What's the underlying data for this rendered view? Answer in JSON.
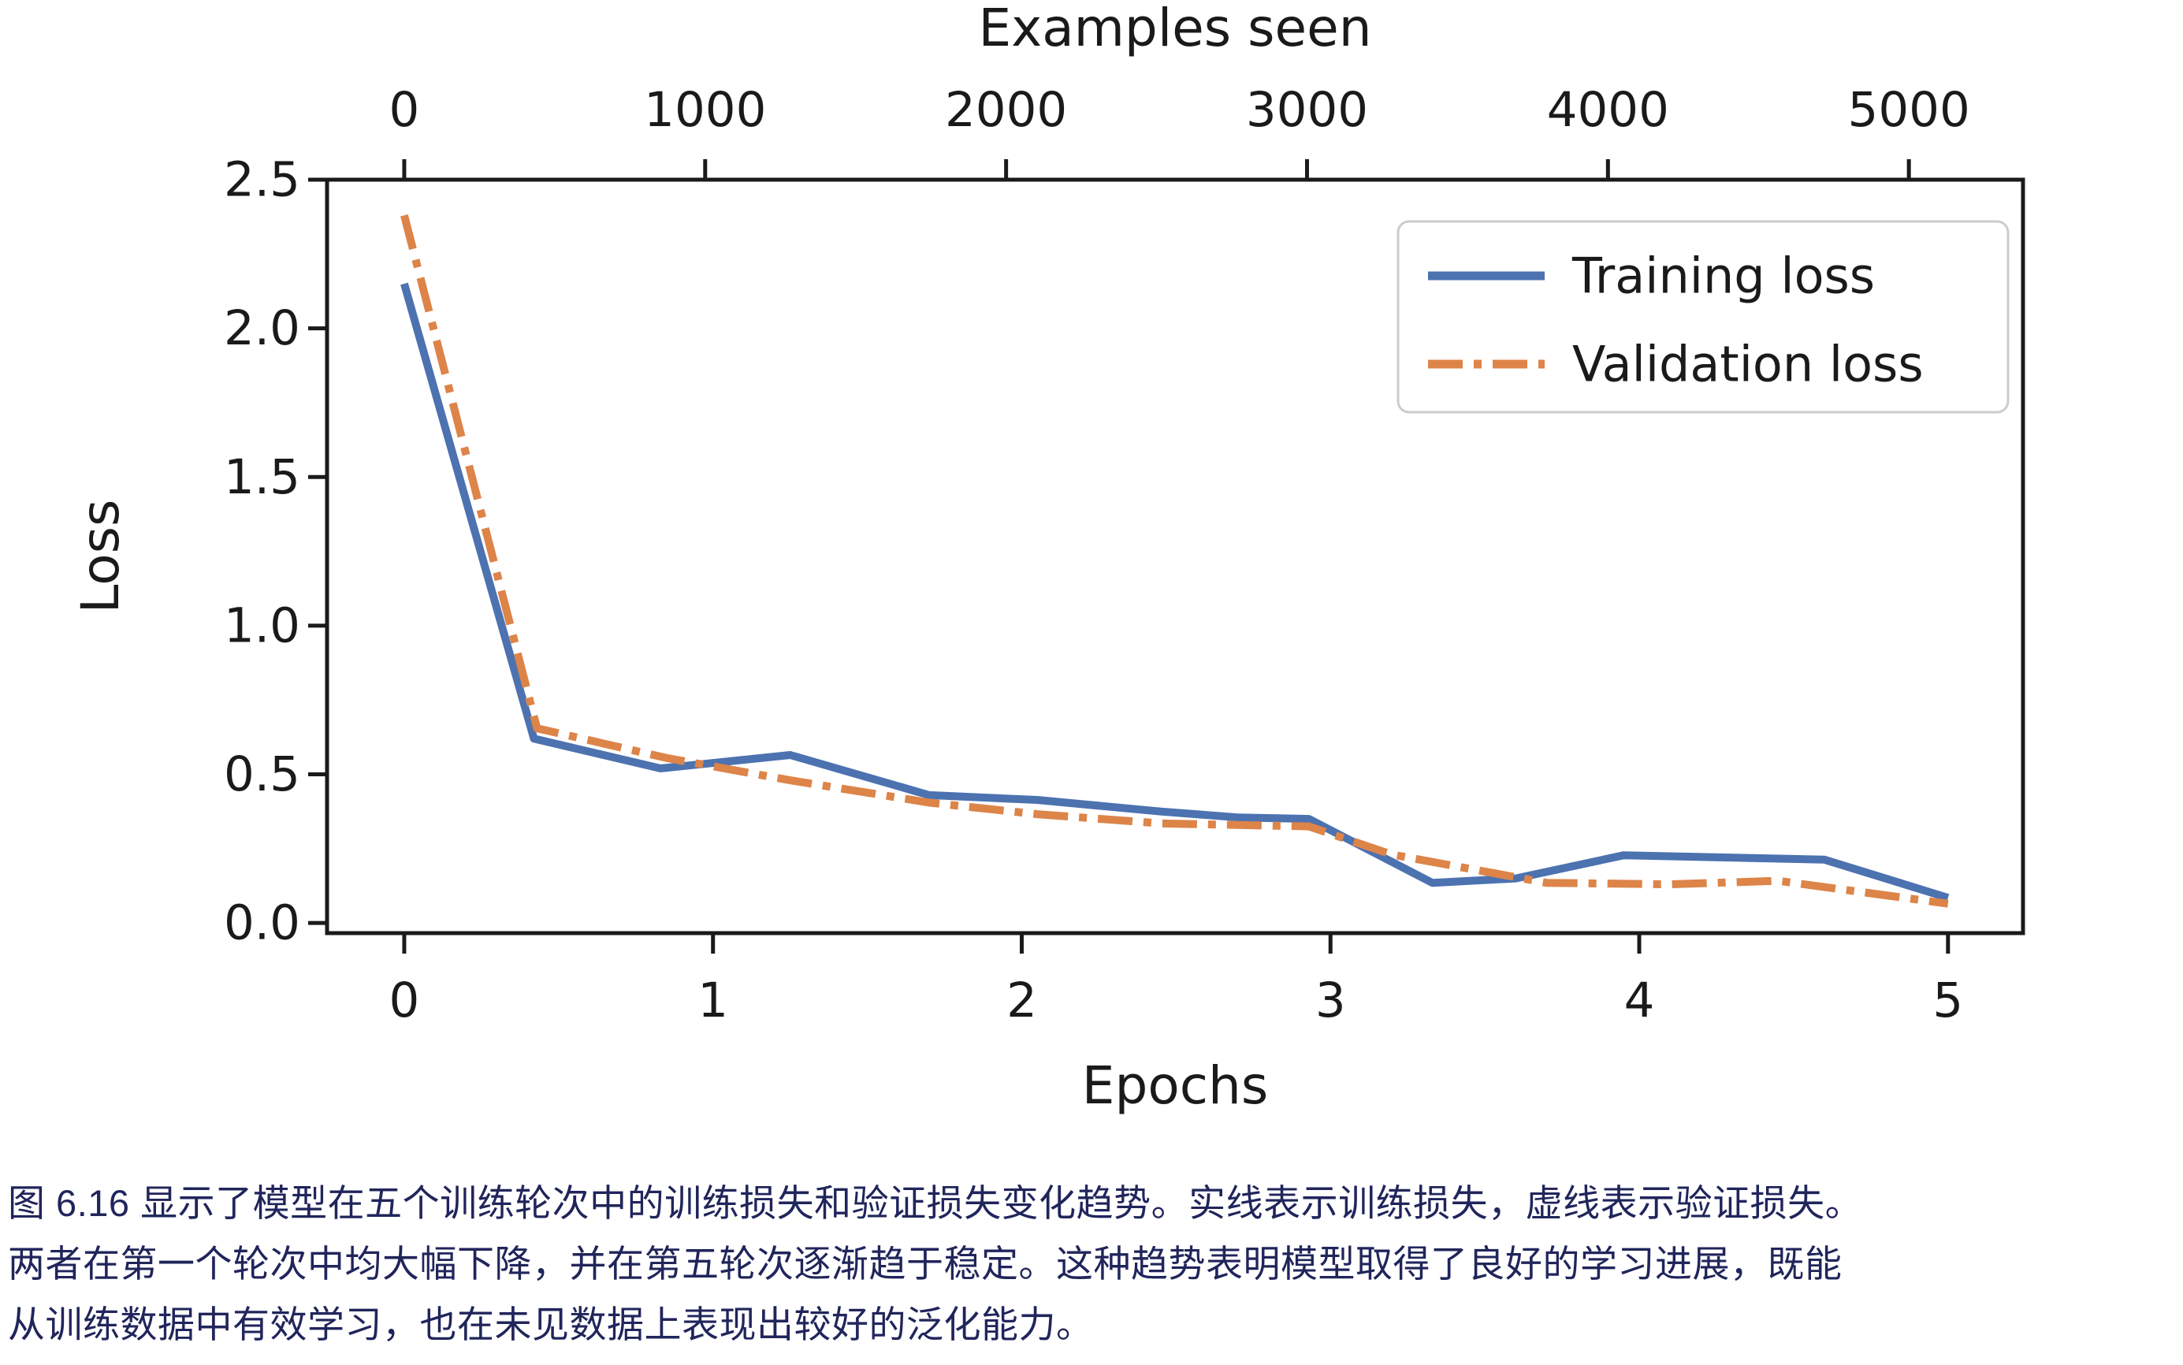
{
  "page": {
    "background": "#ffffff"
  },
  "chart": {
    "top_axis_title": "Examples seen",
    "x_axis_title": "Epochs",
    "y_axis_title": "Loss",
    "legend": [
      {
        "label": "Training loss",
        "style": "solid"
      },
      {
        "label": "Validation loss",
        "style": "dashdot"
      }
    ],
    "colors": {
      "training": "#4c72b0",
      "validation": "#dd8449",
      "axis": "#1a1a1a",
      "legend_border": "#cccccc",
      "legend_fill": "#ffffff"
    }
  },
  "chart_data": {
    "type": "line",
    "title": "Examples seen",
    "xlabel": "Epochs",
    "ylabel": "Loss",
    "grid": false,
    "legend_position": "upper right",
    "xlim": [
      -0.25,
      5.243
    ],
    "ylim": [
      -0.034,
      2.5
    ],
    "axes": {
      "bottom": {
        "label": "Epochs",
        "ticks": [
          0,
          1,
          2,
          3,
          4,
          5
        ]
      },
      "top": {
        "label": "Examples seen",
        "ticks": [
          0,
          1000,
          2000,
          3000,
          4000,
          5000
        ],
        "examples_per_epoch": 1026
      },
      "left": {
        "label": "Loss",
        "ticks": [
          0.0,
          0.5,
          1.0,
          1.5,
          2.0,
          2.5
        ]
      }
    },
    "series": [
      {
        "name": "Training loss",
        "color": "#4c72b0",
        "style": "solid",
        "x": [
          0,
          0.42,
          0.83,
          1.25,
          1.7,
          2.05,
          2.45,
          2.7,
          2.93,
          3.33,
          3.6,
          3.95,
          4.6,
          5.0
        ],
        "y": [
          2.15,
          0.62,
          0.52,
          0.565,
          0.43,
          0.414,
          0.375,
          0.355,
          0.35,
          0.135,
          0.15,
          0.228,
          0.213,
          0.085
        ]
      },
      {
        "name": "Validation loss",
        "color": "#dd8449",
        "style": "dashdot",
        "x": [
          0,
          0.43,
          0.85,
          1.25,
          1.7,
          2.05,
          2.45,
          2.93,
          3.2,
          3.7,
          4.1,
          4.45,
          5.0
        ],
        "y": [
          2.38,
          0.655,
          0.555,
          0.48,
          0.405,
          0.366,
          0.335,
          0.325,
          0.23,
          0.135,
          0.13,
          0.142,
          0.065
        ]
      }
    ]
  },
  "caption": {
    "color": "#20255b",
    "lines": [
      "图 6.16 显示了模型在五个训练轮次中的训练损失和验证损失变化趋势。实线表示训练损失，虚线表示验证损失。",
      "两者在第一个轮次中均大幅下降，并在第五轮次逐渐趋于稳定。这种趋势表明模型取得了良好的学习进展，既能",
      "从训练数据中有效学习，也在未见数据上表现出较好的泛化能力。"
    ]
  }
}
